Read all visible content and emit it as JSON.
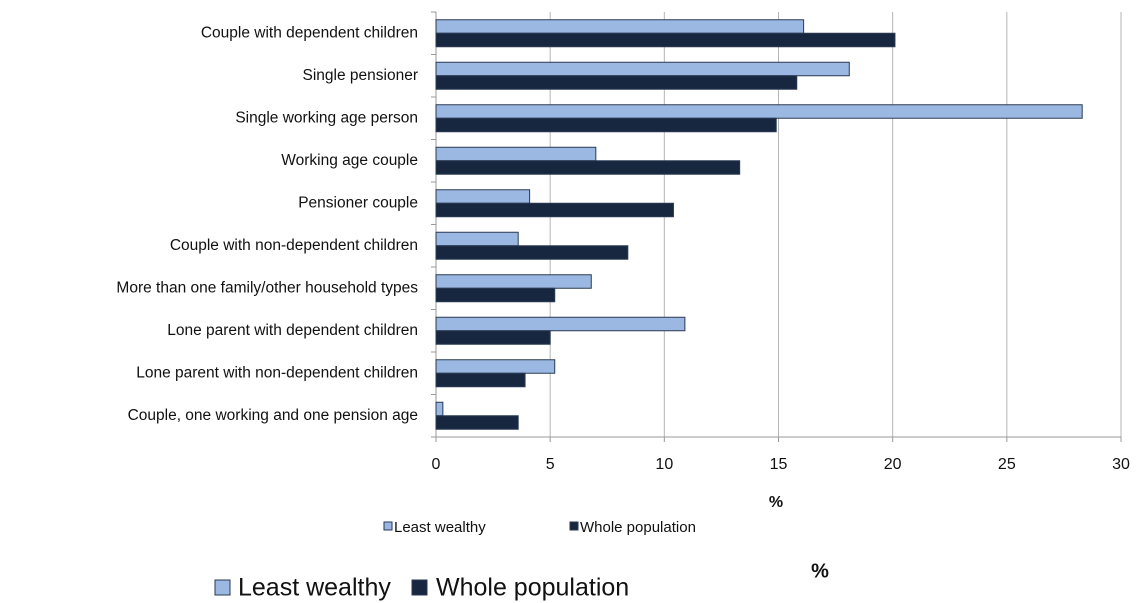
{
  "chart_data": {
    "type": "bar",
    "orientation": "horizontal",
    "xlabel": "%",
    "categories": [
      "Couple with dependent children",
      "Single pensioner",
      "Single working age person",
      "Working age couple",
      "Pensioner couple",
      "Couple with non-dependent children",
      "More than one family/other household types",
      "Lone parent with dependent children",
      "Lone parent with non-dependent children",
      "Couple, one working and one pension age"
    ],
    "series": [
      {
        "name": "Least wealthy",
        "color": "#9bb8e2",
        "values": [
          16.1,
          18.1,
          28.3,
          7.0,
          4.1,
          3.6,
          6.8,
          10.9,
          5.2,
          0.3
        ]
      },
      {
        "name": "Whole population",
        "color": "#17273f",
        "values": [
          20.1,
          15.8,
          14.9,
          13.3,
          10.4,
          8.4,
          5.2,
          5.0,
          3.9,
          3.6
        ]
      }
    ],
    "xlim": [
      0,
      30
    ],
    "xticks": [
      0,
      5,
      10,
      15,
      20,
      25,
      30
    ],
    "grid": true
  }
}
